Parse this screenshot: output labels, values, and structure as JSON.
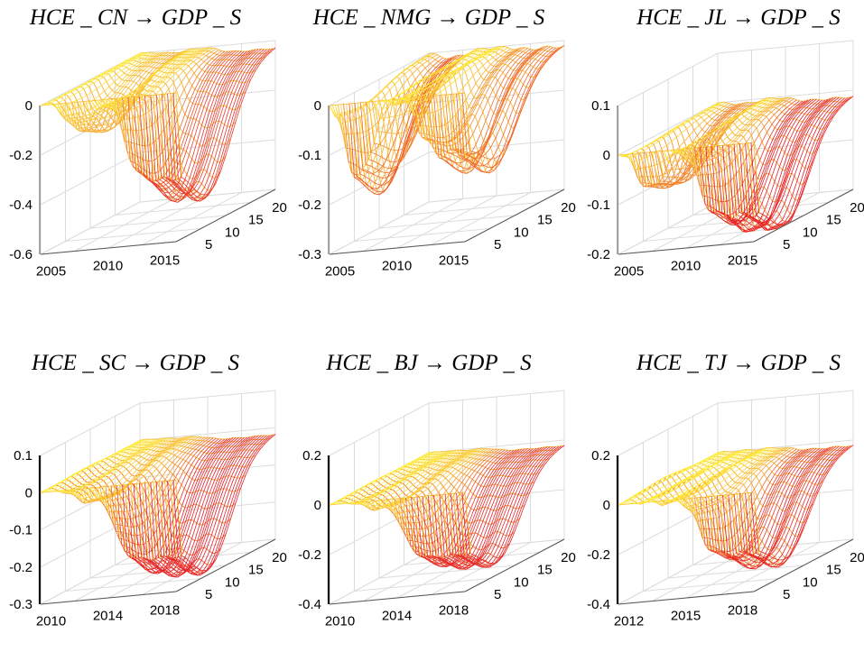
{
  "chart_data": [
    {
      "type": "surface3d",
      "title": "HCE _ CN → GDP _ S",
      "z_ticks": [
        "0",
        "-0.2",
        "-0.4",
        "-0.6"
      ],
      "z_range": [
        -0.6,
        0.0
      ],
      "year_ticks": [
        "2005",
        "2010",
        "2015"
      ],
      "horizon_ticks": [
        "5",
        "10",
        "15",
        "20"
      ],
      "horizon_range": [
        0,
        20
      ],
      "surface": {
        "early_min": -0.16,
        "early_pos": 0.25,
        "late_min": -0.45,
        "late_start": 0.58,
        "ripple": 0.025
      }
    },
    {
      "type": "surface3d",
      "title": "HCE _ NMG → GDP _ S",
      "z_ticks": [
        "0",
        "-0.1",
        "-0.2",
        "-0.3"
      ],
      "z_range": [
        -0.3,
        0.0
      ],
      "year_ticks": [
        "2005",
        "2010",
        "2015"
      ],
      "horizon_ticks": [
        "5",
        "10",
        "15",
        "20"
      ],
      "horizon_range": [
        0,
        20
      ],
      "surface": {
        "early_min": -0.2,
        "early_pos": 0.18,
        "late_min": -0.16,
        "late_start": 0.62,
        "ripple": 0.03
      }
    },
    {
      "type": "surface3d",
      "title": "HCE _ JL → GDP _ S",
      "z_ticks": [
        "0.1",
        "0",
        "-0.1",
        "-0.2"
      ],
      "z_range": [
        -0.2,
        0.1
      ],
      "year_ticks": [
        "2005",
        "2010",
        "2015"
      ],
      "horizon_ticks": [
        "5",
        "10",
        "15",
        "20"
      ],
      "horizon_range": [
        0,
        20
      ],
      "surface": {
        "early_min": -0.1,
        "early_pos": 0.2,
        "late_min": -0.19,
        "late_start": 0.55,
        "ripple": 0.02
      }
    },
    {
      "type": "surface3d",
      "title": "HCE _ SC → GDP _ S",
      "z_ticks": [
        "0.1",
        "0",
        "-0.1",
        "-0.2",
        "-0.3"
      ],
      "z_range": [
        -0.3,
        0.1
      ],
      "year_ticks": [
        "2010",
        "2014",
        "2018"
      ],
      "horizon_ticks": [
        "5",
        "10",
        "15",
        "20"
      ],
      "horizon_range": [
        0,
        20
      ],
      "surface": {
        "early_min": -0.05,
        "early_pos": 0.3,
        "late_min": -0.27,
        "late_start": 0.5,
        "ripple": 0.012
      }
    },
    {
      "type": "surface3d",
      "title": "HCE _ BJ → GDP _ S",
      "z_ticks": [
        "0.2",
        "0",
        "-0.2",
        "-0.4"
      ],
      "z_range": [
        -0.4,
        0.2
      ],
      "year_ticks": [
        "2010",
        "2014",
        "2018"
      ],
      "horizon_ticks": [
        "5",
        "10",
        "15",
        "20"
      ],
      "horizon_range": [
        0,
        20
      ],
      "surface": {
        "early_min": -0.05,
        "early_pos": 0.3,
        "late_min": -0.33,
        "late_start": 0.5,
        "ripple": 0.015
      }
    },
    {
      "type": "surface3d",
      "title": "HCE _ TJ → GDP _ S",
      "z_ticks": [
        "0.2",
        "0",
        "-0.2",
        "-0.4"
      ],
      "z_range": [
        -0.4,
        0.2
      ],
      "year_ticks": [
        "2012",
        "2015",
        "2018"
      ],
      "horizon_ticks": [
        "5",
        "10",
        "15",
        "20"
      ],
      "horizon_range": [
        0,
        20
      ],
      "surface": {
        "early_min": -0.02,
        "early_pos": 0.3,
        "late_min": -0.32,
        "late_start": 0.55,
        "ripple": 0.03
      }
    }
  ],
  "colors": {
    "low": "#e8202a",
    "high": "#fff23a",
    "grid": "#dcdcdc",
    "axis": "#555555"
  }
}
